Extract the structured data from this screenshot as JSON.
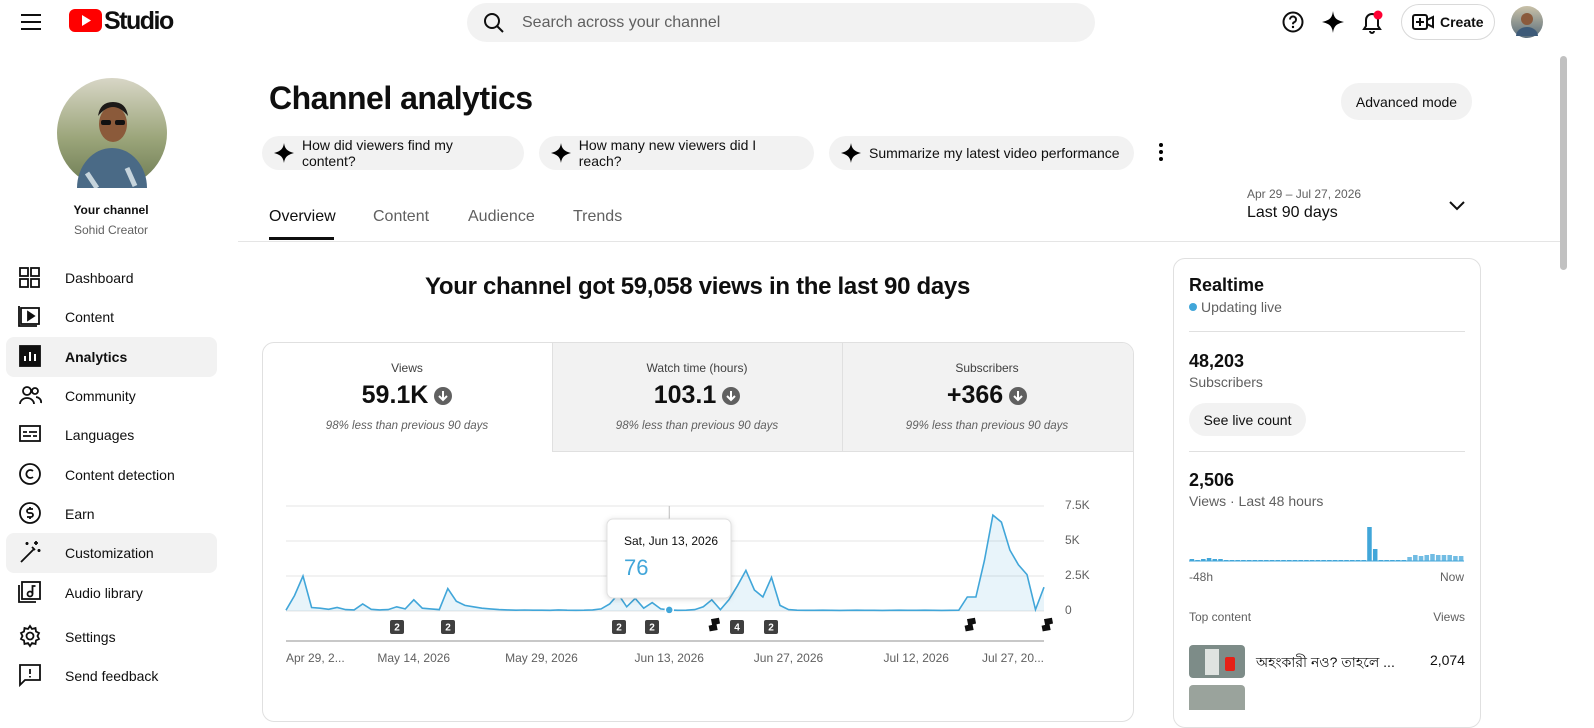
{
  "header": {
    "logo_text": "Studio",
    "search_placeholder": "Search across your channel",
    "create_button": "Create"
  },
  "sidebar": {
    "channel_heading": "Your channel",
    "channel_name": "Sohid Creator",
    "nav": [
      "Dashboard",
      "Content",
      "Analytics",
      "Community",
      "Languages",
      "Content detection",
      "Earn",
      "Customization",
      "Audio library",
      "Settings",
      "Send feedback"
    ]
  },
  "page": {
    "title": "Channel analytics",
    "mode_button": "Advanced mode",
    "suggestions": [
      "How did viewers find my content?",
      "How many new viewers did I reach?",
      "Summarize my latest video performance"
    ],
    "tabs": [
      "Overview",
      "Content",
      "Audience",
      "Trends"
    ],
    "date_range": "Apr 29 – Jul 27, 2026",
    "period": "Last 90 days",
    "headline": "Your channel got 59,058 views in the last 90 days"
  },
  "metrics": [
    {
      "label": "Views",
      "value": "59.1K",
      "comparison": "98% less than previous 90 days"
    },
    {
      "label": "Watch time (hours)",
      "value": "103.1",
      "comparison": "98% less than previous 90 days"
    },
    {
      "label": "Subscribers",
      "value": "+366",
      "comparison": "99% less than previous 90 days"
    }
  ],
  "realtime": {
    "title": "Realtime",
    "status": "Updating live",
    "subscribers": "48,203",
    "subscribers_label": "Subscribers",
    "button": "See live count",
    "views": "2,506",
    "views_label": "Views · Last 48 hours",
    "top_content_label": "Top content",
    "views_column": "Views",
    "top_content": [
      {
        "title": "অহংকারী নও? তাহলে ...",
        "views": "2,074"
      }
    ]
  },
  "chart_data": [
    {
      "type": "area",
      "color": "#41a6d9",
      "grid": true,
      "categories": [
        "Apr 29, 2...",
        null,
        null,
        null,
        null,
        null,
        null,
        null,
        null,
        null,
        null,
        null,
        null,
        null,
        null,
        "May 14, 2026",
        null,
        null,
        null,
        null,
        null,
        null,
        null,
        null,
        null,
        null,
        null,
        null,
        null,
        null,
        "May 29, 2026",
        null,
        null,
        null,
        null,
        null,
        null,
        null,
        null,
        null,
        null,
        null,
        null,
        null,
        null,
        "Jun 13, 2026",
        null,
        null,
        null,
        null,
        null,
        null,
        null,
        null,
        null,
        null,
        null,
        null,
        null,
        "Jun 27, 2026",
        null,
        null,
        null,
        null,
        null,
        null,
        null,
        null,
        null,
        null,
        null,
        null,
        null,
        null,
        "Jul 12, 2026",
        null,
        null,
        null,
        null,
        null,
        null,
        null,
        null,
        null,
        null,
        null,
        null,
        null,
        null,
        "Jul 27, 20..."
      ],
      "values": [
        60,
        1100,
        2500,
        250,
        200,
        120,
        250,
        100,
        80,
        500,
        120,
        80,
        100,
        300,
        150,
        800,
        200,
        150,
        100,
        1600,
        700,
        400,
        300,
        200,
        150,
        100,
        80,
        60,
        70,
        60,
        60,
        50,
        80,
        60,
        50,
        60,
        80,
        150,
        500,
        1200,
        300,
        900,
        200,
        600,
        150,
        76,
        50,
        60,
        100,
        300,
        800,
        100,
        800,
        1800,
        2900,
        1500,
        1000,
        2400,
        400,
        100,
        60,
        50,
        50,
        60,
        50,
        40,
        50,
        60,
        50,
        50,
        40,
        50,
        60,
        50,
        50,
        60,
        50,
        40,
        50,
        60,
        1000,
        1000,
        3600,
        6850,
        6350,
        4350,
        3300,
        2600,
        100,
        1700
      ],
      "ylim": [
        0,
        7500
      ],
      "yticks": [
        0,
        {
          "value": 2500,
          "label": "2.5K"
        },
        {
          "value": 5000,
          "label": "5K"
        },
        {
          "value": 7500,
          "label": "7.5K"
        }
      ],
      "tooltip_date": "Sat, Jun 13, 2026",
      "event_markers": [
        "2",
        "2",
        "2",
        "2",
        "4",
        "2"
      ]
    },
    {
      "type": "bar",
      "color": "#41a6d9",
      "categories": [
        "-48h",
        null,
        null,
        null,
        null,
        null,
        null,
        null,
        null,
        null,
        null,
        null,
        null,
        null,
        null,
        null,
        null,
        null,
        null,
        null,
        null,
        null,
        null,
        null,
        null,
        null,
        null,
        null,
        null,
        null,
        null,
        null,
        null,
        null,
        null,
        null,
        null,
        null,
        null,
        null,
        null,
        null,
        null,
        null,
        null,
        null,
        null,
        "Now"
      ],
      "values": [
        2,
        1,
        2,
        3,
        2,
        2,
        1,
        1,
        1,
        1,
        1,
        1,
        1,
        1,
        1,
        1,
        1,
        1,
        1,
        1,
        1,
        1,
        1,
        1,
        1,
        1,
        1,
        1,
        1,
        1,
        1,
        34,
        12,
        1,
        1,
        1,
        1,
        1,
        4,
        6,
        5,
        6,
        7,
        6,
        6,
        6,
        5,
        5
      ]
    }
  ]
}
